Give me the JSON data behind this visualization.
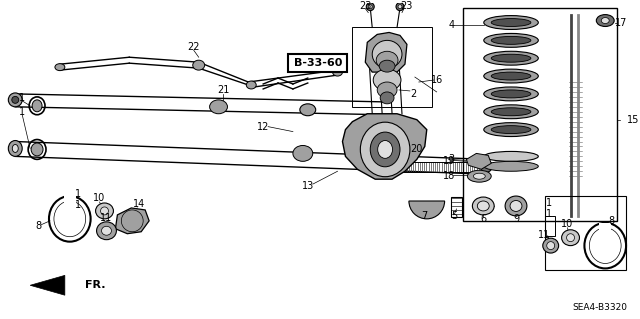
{
  "background": "#ffffff",
  "fig_w": 6.4,
  "fig_h": 3.19,
  "dpi": 100,
  "diagram_code": "SEA4-B3320",
  "ref_code": "B-33-60",
  "gray1": "#c8c8c8",
  "gray2": "#a0a0a0",
  "gray3": "#707070",
  "gray4": "#505050",
  "gray5": "#e0e0e0"
}
